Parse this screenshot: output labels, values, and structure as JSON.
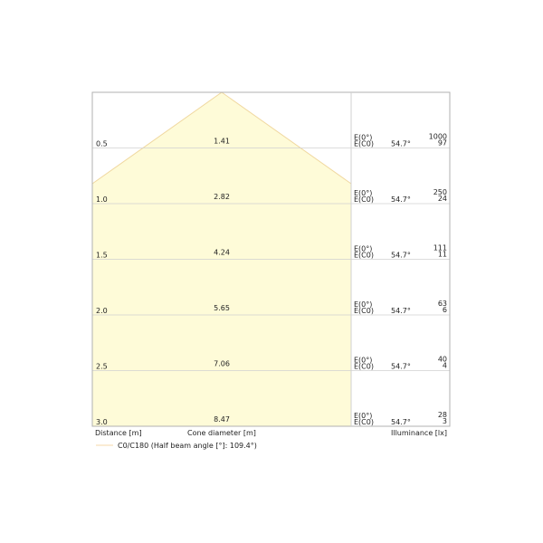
{
  "rows": [
    {
      "distance": "0.5",
      "diameter": "1.41",
      "e0_label": "E(0°)",
      "ec0_label": "E(C0)",
      "angle": "54.7°",
      "e0": "1000",
      "ec0": "97"
    },
    {
      "distance": "1.0",
      "diameter": "2.82",
      "e0_label": "E(0°)",
      "ec0_label": "E(C0)",
      "angle": "54.7°",
      "e0": "250",
      "ec0": "24"
    },
    {
      "distance": "1.5",
      "diameter": "4.24",
      "e0_label": "E(0°)",
      "ec0_label": "E(C0)",
      "angle": "54.7°",
      "e0": "111",
      "ec0": "11"
    },
    {
      "distance": "2.0",
      "diameter": "5.65",
      "e0_label": "E(0°)",
      "ec0_label": "E(C0)",
      "angle": "54.7°",
      "e0": "63",
      "ec0": "6"
    },
    {
      "distance": "2.5",
      "diameter": "7.06",
      "e0_label": "E(0°)",
      "ec0_label": "E(C0)",
      "angle": "54.7°",
      "e0": "40",
      "ec0": "4"
    },
    {
      "distance": "3.0",
      "diameter": "8.47",
      "e0_label": "E(0°)",
      "ec0_label": "E(C0)",
      "angle": "54.7°",
      "e0": "28",
      "ec0": "3"
    }
  ],
  "footer": {
    "distance_label": "Distance [m]",
    "diameter_label": "Cone diameter [m]",
    "illuminance_label": "Illuminance [lx]"
  },
  "legend": {
    "label": "C0/C180 (Half beam angle [°]: 109.4°)",
    "color": "#f5d9a8"
  },
  "colors": {
    "cone_fill": "#fefbd8",
    "cone_stroke": "#f0d8a0",
    "grid": "#d0d0d0",
    "border": "#b0b0b0"
  }
}
